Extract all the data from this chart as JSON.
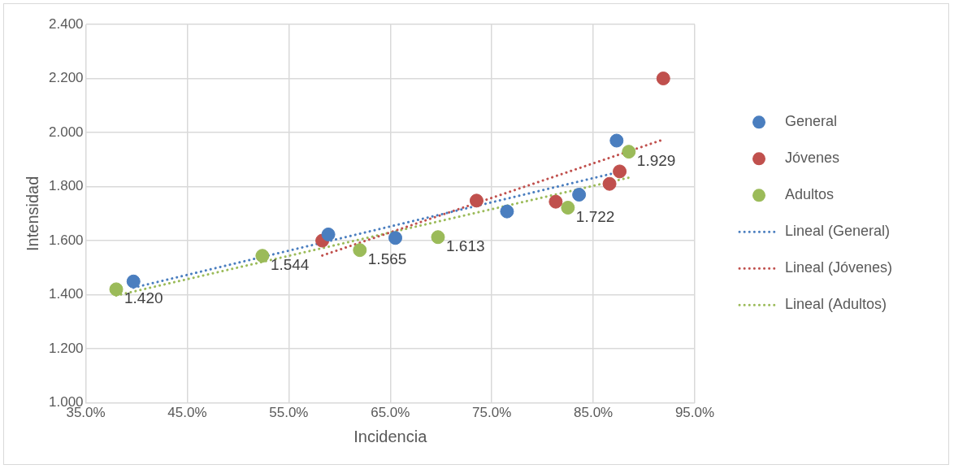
{
  "chart_data": {
    "type": "scatter",
    "xlabel": "Incidencia",
    "ylabel": "Intensidad",
    "xlim": [
      35,
      95
    ],
    "xticks": [
      {
        "value": 35,
        "label": "35.0%"
      },
      {
        "value": 45,
        "label": "45.0%"
      },
      {
        "value": 55,
        "label": "55.0%"
      },
      {
        "value": 65,
        "label": "65.0%"
      },
      {
        "value": 75,
        "label": "75.0%"
      },
      {
        "value": 85,
        "label": "85.0%"
      },
      {
        "value": 95,
        "label": "95.0%"
      }
    ],
    "ylim": [
      1,
      2.4
    ],
    "yticks": [
      {
        "value": 1,
        "label": "1.000"
      },
      {
        "value": 1.2,
        "label": "1.200"
      },
      {
        "value": 1.4,
        "label": "1.400"
      },
      {
        "value": 1.6,
        "label": "1.600"
      },
      {
        "value": 1.8,
        "label": "1.800"
      },
      {
        "value": 2,
        "label": "2.000"
      },
      {
        "value": 2.2,
        "label": "2.200"
      },
      {
        "value": 2.4,
        "label": "2.400"
      }
    ],
    "grid": true,
    "legend": "right",
    "marker": "circle",
    "series": [
      {
        "name": "General",
        "color": "#4a7ebf",
        "x": [
          39.7,
          58.9,
          65.5,
          76.5,
          83.6,
          87.3
        ],
        "values": [
          1.449,
          1.623,
          1.61,
          1.708,
          1.77,
          1.97
        ]
      },
      {
        "name": "Jóvenes",
        "color": "#c0504d",
        "x": [
          58.3,
          73.5,
          81.3,
          86.6,
          87.6,
          91.9
        ],
        "values": [
          1.6,
          1.748,
          1.744,
          1.81,
          1.856,
          2.2
        ]
      },
      {
        "name": "Adultos",
        "color": "#9bbb59",
        "x": [
          38,
          52.4,
          62,
          69.7,
          82.5,
          88.5
        ],
        "values": [
          1.42,
          1.544,
          1.565,
          1.613,
          1.722,
          1.929
        ],
        "value_labels": [
          "1.420",
          "1.544",
          "1.565",
          "1.613",
          "1.722",
          "1.929"
        ]
      },
      {
        "name": "Lineal (General)",
        "type": "line",
        "line_style": "dotted",
        "marker": "none",
        "color": "#4a7ebf",
        "x": [
          39.7,
          87.3
        ],
        "values": [
          1.426,
          1.852
        ]
      },
      {
        "name": "Lineal (Jóvenes)",
        "type": "line",
        "line_style": "dotted",
        "marker": "none",
        "color": "#c0504d",
        "x": [
          58.3,
          91.9
        ],
        "values": [
          1.545,
          1.974
        ]
      },
      {
        "name": "Lineal (Adultos)",
        "type": "line",
        "line_style": "dotted",
        "marker": "none",
        "color": "#9bbb59",
        "x": [
          38,
          88.5
        ],
        "values": [
          1.397,
          1.833
        ]
      }
    ]
  }
}
